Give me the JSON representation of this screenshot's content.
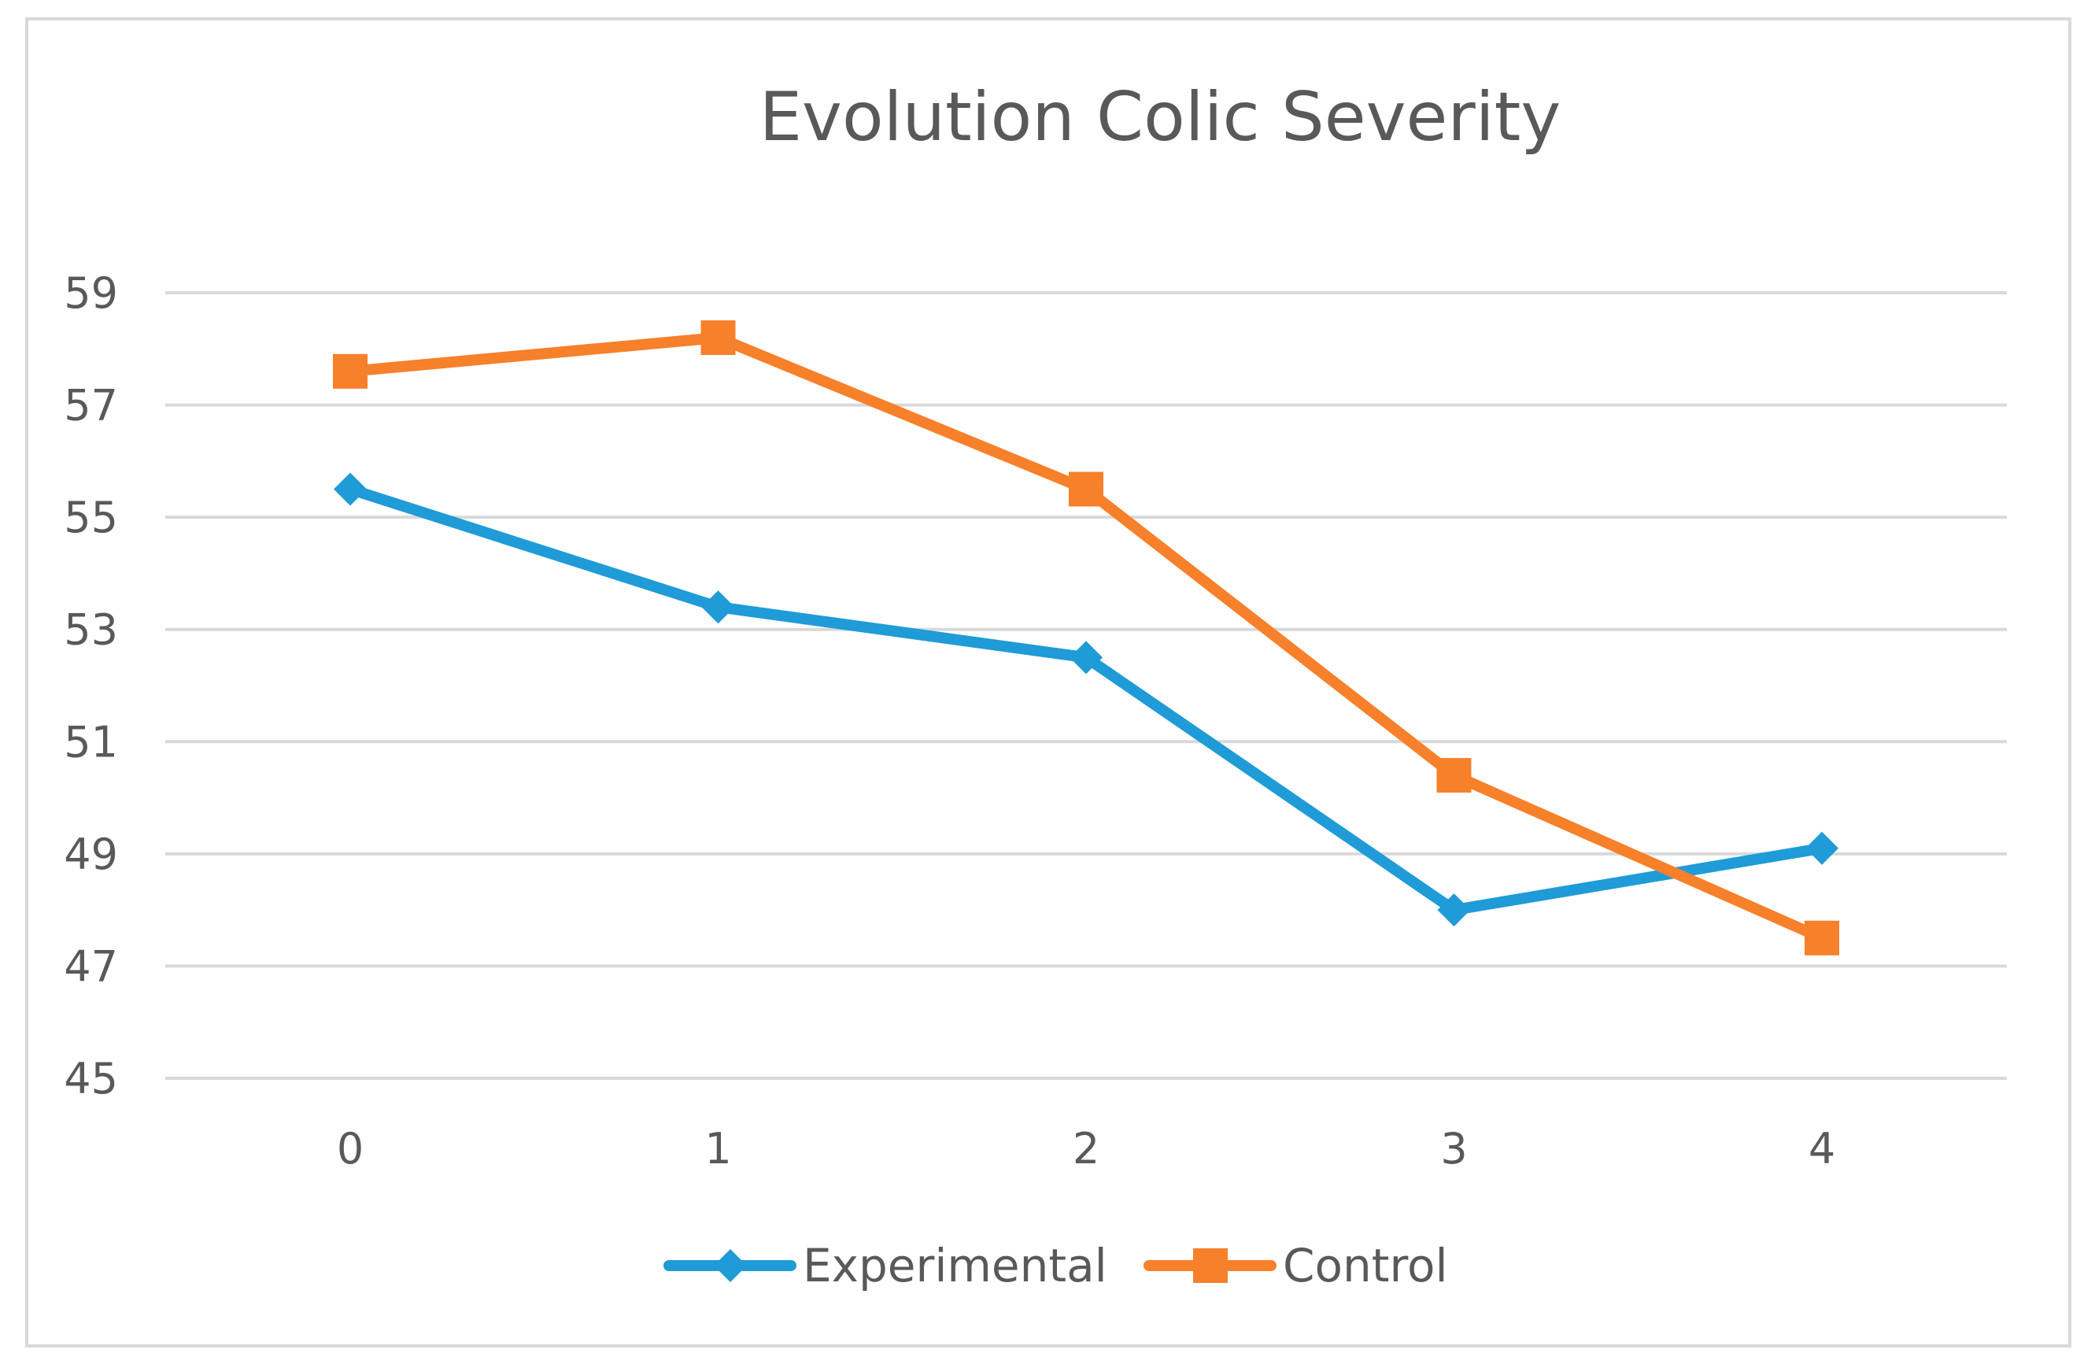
{
  "chart_data": {
    "type": "line",
    "title": "Evolution Colic Severity",
    "xlabel": "",
    "ylabel": "",
    "categories": [
      "0",
      "1",
      "2",
      "3",
      "4"
    ],
    "ylim": [
      45,
      59
    ],
    "yticks": [
      "45",
      "47",
      "49",
      "51",
      "53",
      "55",
      "57",
      "59"
    ],
    "grid": true,
    "legend_position": "bottom",
    "series": [
      {
        "name": "Experimental",
        "color": "#1f9bd7",
        "marker": "diamond",
        "values": [
          55.5,
          53.4,
          52.5,
          48.0,
          49.1
        ]
      },
      {
        "name": "Control",
        "color": "#f7802a",
        "marker": "square",
        "values": [
          57.6,
          58.2,
          55.5,
          50.4,
          47.5
        ]
      }
    ]
  }
}
